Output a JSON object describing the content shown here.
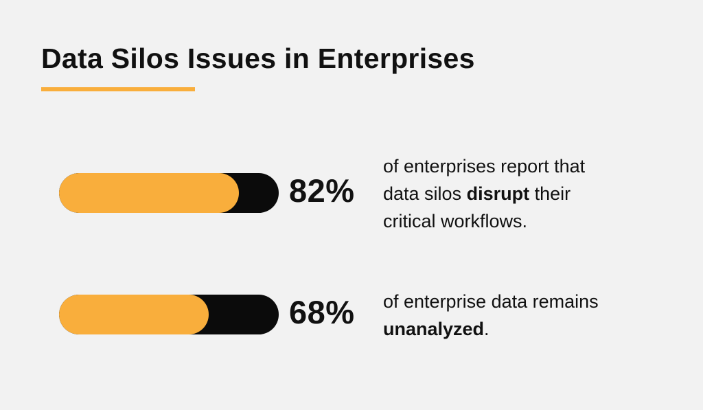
{
  "title": "Data Silos Issues in Enterprises",
  "colors": {
    "accent": "#f9ae3c",
    "bar_track": "#0b0b0b",
    "background": "#f2f2f2",
    "text": "#111111"
  },
  "stats": [
    {
      "value_label": "82%",
      "fill_fraction": 0.82,
      "desc_line1": "of enterprises report that",
      "desc_line2_pre": "data silos ",
      "desc_line2_bold": "disrupt",
      "desc_line2_post": " their",
      "desc_line3": "critical workflows."
    },
    {
      "value_label": "68%",
      "fill_fraction": 0.68,
      "desc_line1": "of enterprise data remains",
      "desc_line2_bold": "unanalyzed",
      "desc_line2_post": "."
    }
  ]
}
